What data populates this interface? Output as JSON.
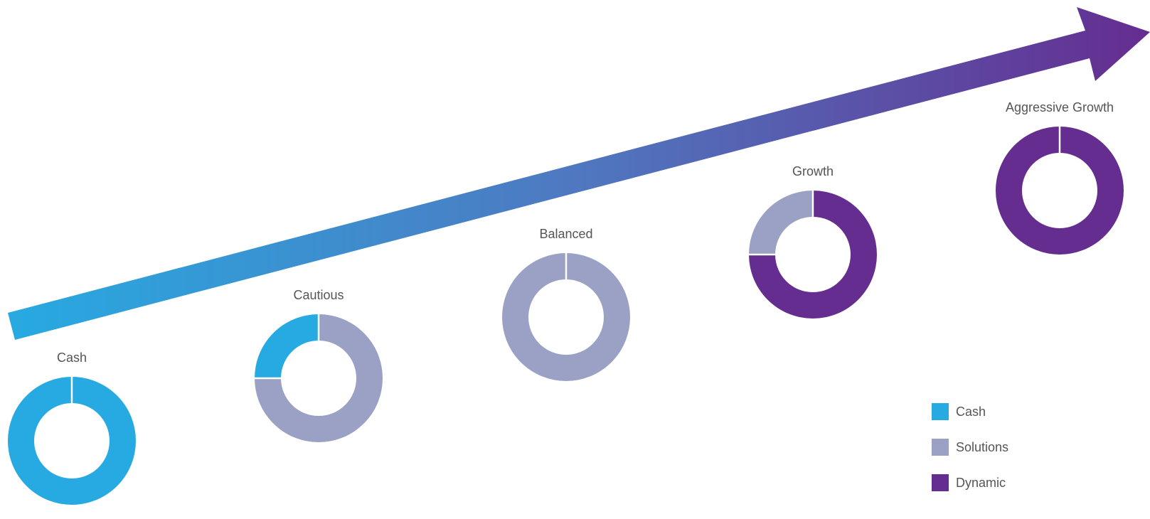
{
  "chart_data": {
    "type": "pie",
    "variant": "donut",
    "series_names": [
      "Cash",
      "Solutions",
      "Dynamic"
    ],
    "colors": {
      "Cash": "#27aae1",
      "Solutions": "#9aa1c4",
      "Dynamic": "#652d90"
    },
    "portfolios": [
      {
        "label": "Cash",
        "slices": [
          {
            "series": "Cash",
            "value": 100
          }
        ]
      },
      {
        "label": "Cautious",
        "slices": [
          {
            "series": "Solutions",
            "value": 75
          },
          {
            "series": "Cash",
            "value": 25
          }
        ]
      },
      {
        "label": "Balanced",
        "slices": [
          {
            "series": "Solutions",
            "value": 100
          }
        ]
      },
      {
        "label": "Growth",
        "slices": [
          {
            "series": "Dynamic",
            "value": 75
          },
          {
            "series": "Solutions",
            "value": 25
          }
        ]
      },
      {
        "label": "Aggressive Growth",
        "slices": [
          {
            "series": "Dynamic",
            "value": 100
          }
        ]
      }
    ],
    "arrow": {
      "description": "risk progression",
      "gradient_start": "#27aae1",
      "gradient_mid": "#4f78c0",
      "gradient_end": "#652d90"
    },
    "legend": {
      "placement": "bottom-right",
      "items": [
        {
          "label": "Cash",
          "color": "#27aae1"
        },
        {
          "label": "Solutions",
          "color": "#9aa1c4"
        },
        {
          "label": "Dynamic",
          "color": "#652d90"
        }
      ]
    }
  }
}
